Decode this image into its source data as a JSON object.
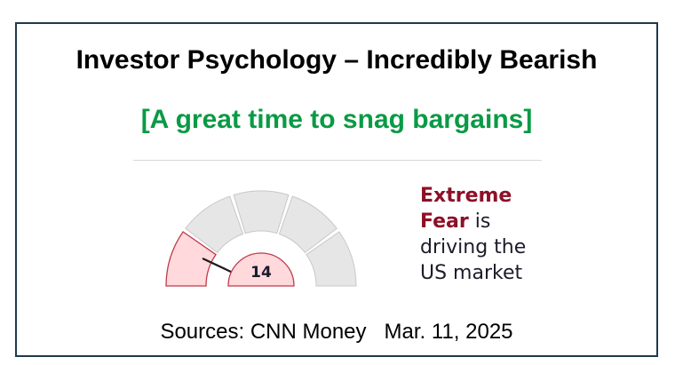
{
  "title": "Investor Psychology – Incredibly Bearish",
  "subtitle": "[A great time to snag bargains]",
  "gauge": {
    "value": 14,
    "value_label": "14",
    "scale_min": 0,
    "scale_max": 100,
    "segment_count": 5,
    "active_color": "#ffd9dc",
    "active_border": "#c0394b",
    "inactive_color": "#e6e6e6"
  },
  "caption": {
    "line1_emphasis": "Extreme",
    "line2_emphasis": "Fear",
    "line2_rest": " is",
    "line3": "driving the",
    "line4": "US market",
    "emphasis_color": "#8c1028"
  },
  "sources": {
    "label": "Sources: CNN Money",
    "date": "Mar. 11, 2025"
  },
  "colors": {
    "border": "#1f3a4a",
    "subtitle": "#0a9a45"
  }
}
